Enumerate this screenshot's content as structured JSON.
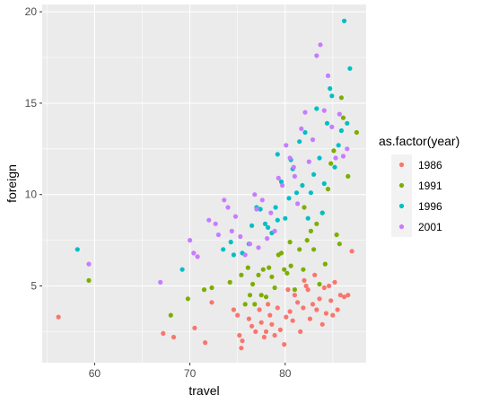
{
  "chart_data": {
    "type": "scatter",
    "xlabel": "travel",
    "ylabel": "foreign",
    "xlim": [
      54.5,
      88.5
    ],
    "ylim": [
      0.8,
      20.4
    ],
    "x_ticks": [
      60,
      70,
      80
    ],
    "y_ticks": [
      5,
      10,
      15,
      20
    ],
    "x_tick_labels": [
      "60",
      "70",
      "80"
    ],
    "y_tick_labels": [
      "5",
      "10",
      "15",
      "20"
    ],
    "grid": true,
    "legend": {
      "title": "as.factor(year)",
      "placement": "right"
    },
    "series": [
      {
        "name": "1986",
        "color": "#F8766D",
        "points": [
          [
            56.2,
            3.3
          ],
          [
            67.2,
            2.4
          ],
          [
            68.3,
            2.2
          ],
          [
            70.5,
            2.7
          ],
          [
            71.6,
            1.9
          ],
          [
            72.3,
            4.1
          ],
          [
            74.6,
            3.7
          ],
          [
            75.0,
            3.4
          ],
          [
            75.2,
            2.3
          ],
          [
            75.5,
            2.0
          ],
          [
            75.4,
            1.6
          ],
          [
            76.2,
            3.2
          ],
          [
            76.5,
            2.8
          ],
          [
            76.9,
            2.5
          ],
          [
            77.3,
            3.7
          ],
          [
            77.5,
            3.0
          ],
          [
            77.8,
            2.2
          ],
          [
            78.0,
            2.5
          ],
          [
            78.2,
            4.0
          ],
          [
            78.4,
            3.4
          ],
          [
            78.6,
            2.9
          ],
          [
            78.9,
            2.3
          ],
          [
            79.2,
            3.8
          ],
          [
            79.5,
            2.6
          ],
          [
            79.9,
            1.8
          ],
          [
            80.1,
            3.3
          ],
          [
            80.5,
            3.6
          ],
          [
            80.8,
            3.1
          ],
          [
            81.0,
            4.5
          ],
          [
            81.3,
            4.1
          ],
          [
            81.6,
            2.5
          ],
          [
            81.9,
            3.8
          ],
          [
            82.0,
            5.3
          ],
          [
            82.4,
            4.8
          ],
          [
            82.6,
            3.2
          ],
          [
            82.9,
            4.0
          ],
          [
            83.1,
            5.6
          ],
          [
            83.3,
            3.7
          ],
          [
            83.6,
            4.3
          ],
          [
            83.9,
            2.9
          ],
          [
            84.1,
            4.9
          ],
          [
            84.3,
            3.5
          ],
          [
            84.6,
            5.0
          ],
          [
            84.8,
            4.2
          ],
          [
            85.0,
            3.4
          ],
          [
            85.2,
            5.2
          ],
          [
            85.5,
            3.7
          ],
          [
            85.8,
            4.5
          ],
          [
            86.2,
            4.4
          ],
          [
            86.6,
            4.5
          ],
          [
            87.0,
            6.9
          ],
          [
            82.2,
            5.0
          ],
          [
            80.3,
            4.8
          ]
        ]
      },
      {
        "name": "1991",
        "color": "#7CAE00",
        "points": [
          [
            59.4,
            5.3
          ],
          [
            68.0,
            3.4
          ],
          [
            69.8,
            4.3
          ],
          [
            71.5,
            4.8
          ],
          [
            72.3,
            4.9
          ],
          [
            74.2,
            5.2
          ],
          [
            75.4,
            5.6
          ],
          [
            75.8,
            4.0
          ],
          [
            76.1,
            6.0
          ],
          [
            76.3,
            4.5
          ],
          [
            76.6,
            5.1
          ],
          [
            76.8,
            4.0
          ],
          [
            77.2,
            5.6
          ],
          [
            77.5,
            4.5
          ],
          [
            77.7,
            5.9
          ],
          [
            78.0,
            4.4
          ],
          [
            78.3,
            6.0
          ],
          [
            78.6,
            5.5
          ],
          [
            78.9,
            4.9
          ],
          [
            79.3,
            6.7
          ],
          [
            79.6,
            6.8
          ],
          [
            79.9,
            5.9
          ],
          [
            80.2,
            5.7
          ],
          [
            80.6,
            6.1
          ],
          [
            81.0,
            4.8
          ],
          [
            81.5,
            7.0
          ],
          [
            81.9,
            5.9
          ],
          [
            82.3,
            7.5
          ],
          [
            82.7,
            8.0
          ],
          [
            83.0,
            7.0
          ],
          [
            83.3,
            8.4
          ],
          [
            83.6,
            5.1
          ],
          [
            83.9,
            9.0
          ],
          [
            84.2,
            6.2
          ],
          [
            84.5,
            10.3
          ],
          [
            84.8,
            11.7
          ],
          [
            85.1,
            12.4
          ],
          [
            85.4,
            7.8
          ],
          [
            85.7,
            7.3
          ],
          [
            85.9,
            15.3
          ],
          [
            86.1,
            14.2
          ],
          [
            86.6,
            11.0
          ],
          [
            87.5,
            13.4
          ],
          [
            80.5,
            7.4
          ],
          [
            82.0,
            9.3
          ]
        ]
      },
      {
        "name": "1996",
        "color": "#00BFC4",
        "points": [
          [
            58.2,
            7.0
          ],
          [
            69.2,
            5.9
          ],
          [
            73.5,
            7.0
          ],
          [
            74.3,
            7.4
          ],
          [
            74.6,
            6.7
          ],
          [
            75.5,
            6.8
          ],
          [
            76.2,
            7.3
          ],
          [
            76.5,
            8.3
          ],
          [
            77.0,
            9.3
          ],
          [
            77.4,
            9.2
          ],
          [
            77.9,
            8.4
          ],
          [
            78.2,
            8.2
          ],
          [
            78.6,
            7.9
          ],
          [
            79.0,
            9.3
          ],
          [
            79.2,
            8.6
          ],
          [
            79.6,
            10.7
          ],
          [
            80.0,
            8.7
          ],
          [
            80.4,
            9.8
          ],
          [
            80.8,
            11.4
          ],
          [
            81.2,
            10.1
          ],
          [
            81.5,
            12.9
          ],
          [
            81.8,
            10.5
          ],
          [
            82.1,
            13.4
          ],
          [
            82.4,
            8.7
          ],
          [
            82.7,
            10.1
          ],
          [
            83.0,
            11.1
          ],
          [
            83.3,
            14.7
          ],
          [
            83.6,
            12.0
          ],
          [
            83.9,
            9.0
          ],
          [
            84.1,
            10.6
          ],
          [
            84.4,
            13.9
          ],
          [
            84.7,
            15.8
          ],
          [
            84.9,
            15.4
          ],
          [
            85.2,
            11.5
          ],
          [
            85.6,
            12.7
          ],
          [
            85.9,
            13.5
          ],
          [
            86.2,
            19.5
          ],
          [
            86.5,
            13.9
          ],
          [
            86.8,
            16.9
          ],
          [
            79.2,
            12.2
          ],
          [
            80.6,
            11.9
          ]
        ]
      },
      {
        "name": "2001",
        "color": "#C77CFF",
        "points": [
          [
            59.4,
            6.2
          ],
          [
            66.9,
            5.2
          ],
          [
            70.0,
            7.5
          ],
          [
            70.4,
            6.8
          ],
          [
            70.8,
            6.6
          ],
          [
            72.0,
            8.6
          ],
          [
            72.7,
            8.4
          ],
          [
            73.6,
            9.7
          ],
          [
            74.0,
            9.3
          ],
          [
            74.4,
            8.0
          ],
          [
            74.8,
            8.8
          ],
          [
            75.3,
            7.7
          ],
          [
            75.8,
            6.7
          ],
          [
            76.3,
            7.3
          ],
          [
            76.8,
            10.0
          ],
          [
            77.2,
            7.1
          ],
          [
            77.6,
            9.7
          ],
          [
            78.1,
            7.6
          ],
          [
            78.5,
            9.0
          ],
          [
            78.9,
            8.0
          ],
          [
            79.3,
            10.9
          ],
          [
            79.7,
            10.5
          ],
          [
            80.1,
            12.7
          ],
          [
            80.5,
            12.0
          ],
          [
            80.9,
            11.5
          ],
          [
            81.3,
            9.5
          ],
          [
            81.7,
            13.6
          ],
          [
            82.1,
            14.5
          ],
          [
            82.5,
            11.8
          ],
          [
            82.9,
            13.0
          ],
          [
            83.3,
            17.6
          ],
          [
            83.7,
            18.2
          ],
          [
            84.1,
            14.6
          ],
          [
            84.5,
            16.5
          ],
          [
            84.9,
            13.7
          ],
          [
            85.3,
            12.0
          ],
          [
            85.7,
            14.4
          ],
          [
            86.1,
            12.1
          ],
          [
            86.5,
            12.5
          ],
          [
            73.0,
            7.8
          ],
          [
            77.0,
            9.2
          ],
          [
            81.0,
            11.0
          ]
        ]
      }
    ]
  }
}
